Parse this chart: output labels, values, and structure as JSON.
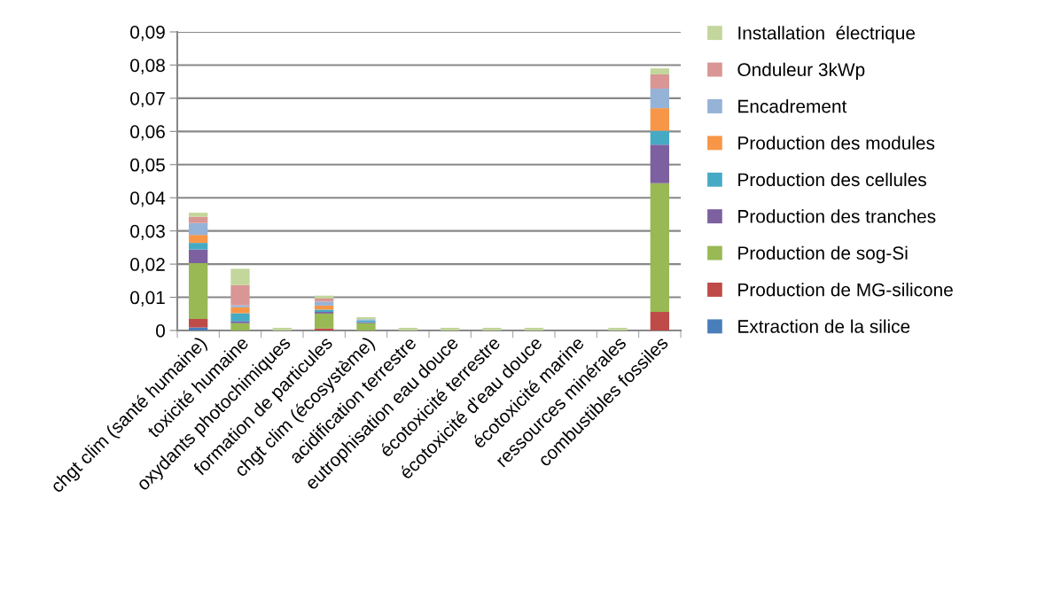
{
  "chart_data": {
    "type": "bar",
    "stacked": true,
    "categories": [
      "chgt clim (santé humaine)",
      "toxicité humaine",
      "oxydants photochimiques",
      "formation de particules",
      "chgt clim (écosystème)",
      "acidification terrestre",
      "eutrophisation eau douce",
      "écotoxicité terrestre",
      "écotoxicité d'eau douce",
      "écotoxicité marine",
      "ressources minérales",
      "combustibles fossiles"
    ],
    "series": [
      {
        "name": "Extraction de la silice",
        "color": "#4a7ebb",
        "values": [
          0.0009,
          null,
          null,
          null,
          null,
          null,
          null,
          null,
          null,
          null,
          null,
          null
        ]
      },
      {
        "name": "Production de MG-silicone",
        "color": "#be4b48",
        "values": [
          0.0026,
          null,
          null,
          0.0006,
          null,
          null,
          null,
          null,
          null,
          null,
          null,
          0.0056
        ]
      },
      {
        "name": "Production de sog-Si",
        "color": "#98b954",
        "values": [
          0.0168,
          0.0022,
          null,
          0.0045,
          0.0022,
          null,
          null,
          null,
          null,
          null,
          null,
          0.0388
        ]
      },
      {
        "name": "Production des tranches",
        "color": "#7d60a0",
        "values": [
          0.0041,
          0.0005,
          null,
          0.0005,
          0.0003,
          null,
          null,
          null,
          null,
          null,
          null,
          0.0116
        ]
      },
      {
        "name": "Production des cellules",
        "color": "#46aac5",
        "values": [
          0.002,
          0.0025,
          null,
          0.0007,
          0.0005,
          null,
          null,
          null,
          null,
          null,
          null,
          0.0042
        ]
      },
      {
        "name": "Production des modules",
        "color": "#f79646",
        "values": [
          0.0024,
          0.0018,
          null,
          0.0012,
          null,
          null,
          null,
          null,
          null,
          null,
          null,
          0.0068
        ]
      },
      {
        "name": "Encadrement",
        "color": "#95b3d7",
        "values": [
          0.0036,
          0.0006,
          null,
          0.0012,
          0.0004,
          null,
          null,
          null,
          null,
          null,
          null,
          0.0059
        ]
      },
      {
        "name": "Onduleur 3kWp",
        "color": "#d99694",
        "values": [
          0.0019,
          0.0061,
          null,
          0.001,
          null,
          null,
          null,
          null,
          null,
          null,
          null,
          0.0043
        ]
      },
      {
        "name": "Installation  électrique",
        "color": "#c3d69b",
        "values": [
          0.0012,
          0.0049,
          0.0008,
          0.0008,
          0.0006,
          0.0008,
          0.0008,
          0.0008,
          0.0008,
          null,
          0.0008,
          0.0018
        ]
      }
    ],
    "ylim": [
      0,
      0.09
    ],
    "yticks": [
      {
        "value": 0,
        "label": "0"
      },
      {
        "value": 0.01,
        "label": "0,01"
      },
      {
        "value": 0.02,
        "label": "0,02"
      },
      {
        "value": 0.03,
        "label": "0,03"
      },
      {
        "value": 0.04,
        "label": "0,04"
      },
      {
        "value": 0.05,
        "label": "0,05"
      },
      {
        "value": 0.06,
        "label": "0,06"
      },
      {
        "value": 0.07,
        "label": "0,07"
      },
      {
        "value": 0.08,
        "label": "0,08"
      },
      {
        "value": 0.09,
        "label": "0,09"
      }
    ],
    "grid": "y",
    "legend": "right"
  }
}
